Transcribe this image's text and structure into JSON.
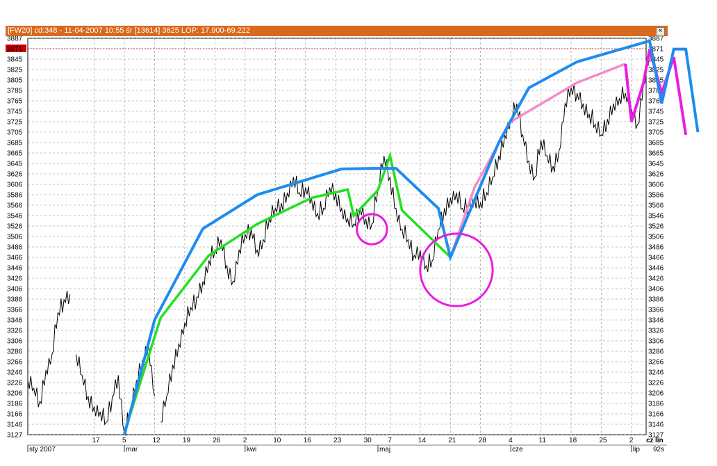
{
  "window": {
    "title": "[FW20] cd:348 - 11-04-2007 10:55 śr [13614]   3625  LOP: 17.900-69.222",
    "close_label": "×"
  },
  "status": {
    "mode_cz": "cz",
    "mode_lin": "lin",
    "interval": "92s",
    "last_price": "3871"
  },
  "colors": {
    "title_bg": "#d9691e",
    "price_line": "#000000",
    "blue_line": "#1e8cf0",
    "green_line": "#22e022",
    "pink_line": "#f48cc8",
    "magenta_line": "#e81ee0",
    "last_price_bg": "#cc0000"
  },
  "chart_data": {
    "type": "line",
    "title": "[FW20] cd:348 - 11-04-2007 10:55 śr [13614]   3625  LOP: 17.900-69.222",
    "ylim": [
      3127,
      3887
    ],
    "grid": true,
    "y_ticks_left": [
      "3887",
      "3871",
      "3845",
      "3825",
      "3805",
      "3785",
      "3765",
      "3745",
      "3725",
      "3705",
      "3685",
      "3665",
      "3645",
      "3626",
      "3606",
      "3586",
      "3566",
      "3546",
      "3526",
      "3506",
      "3486",
      "3466",
      "3446",
      "3426",
      "3406",
      "3386",
      "3366",
      "3346",
      "3326",
      "3306",
      "3286",
      "3266",
      "3246",
      "3226",
      "3206",
      "3186",
      "3166",
      "3146",
      "3127"
    ],
    "y_ticks_right": [
      "3887",
      "3871",
      "3845",
      "3825",
      "3805",
      "3785",
      "3765",
      "3745",
      "3725",
      "3705",
      "3685",
      "3665",
      "3645",
      "3626",
      "3606",
      "3586",
      "3566",
      "3546",
      "3526",
      "3506",
      "3486",
      "3466",
      "3446",
      "3426",
      "3406",
      "3386",
      "3366",
      "3346",
      "3326",
      "3306",
      "3286",
      "3266",
      "3246",
      "3226",
      "3206",
      "3186",
      "3166",
      "3146",
      "3127"
    ],
    "x_day_ticks": [
      {
        "label": "17",
        "x": 11
      },
      {
        "label": "5",
        "x": 16
      },
      {
        "label": "12",
        "x": 21
      },
      {
        "label": "19",
        "x": 26
      },
      {
        "label": "26",
        "x": 31
      },
      {
        "label": "2",
        "x": 36
      },
      {
        "label": "10",
        "x": 41
      },
      {
        "label": "16",
        "x": 46
      },
      {
        "label": "23",
        "x": 51
      },
      {
        "label": "30",
        "x": 56
      },
      {
        "label": "7",
        "x": 60
      },
      {
        "label": "14",
        "x": 65
      },
      {
        "label": "21",
        "x": 70
      },
      {
        "label": "28",
        "x": 75
      },
      {
        "label": "4",
        "x": 80
      },
      {
        "label": "11",
        "x": 85
      },
      {
        "label": "18",
        "x": 90
      },
      {
        "label": "25",
        "x": 95
      },
      {
        "label": "2",
        "x": 100
      }
    ],
    "x_month_ticks": [
      {
        "label": "sty 2007",
        "x": 0
      },
      {
        "label": "mar",
        "x": 16
      },
      {
        "label": "kwi",
        "x": 36
      },
      {
        "label": "maj",
        "x": 58
      },
      {
        "label": "cze",
        "x": 80
      },
      {
        "label": "lip",
        "x": 100
      }
    ],
    "series": [
      {
        "key": "price",
        "x": [
          0,
          1,
          2,
          3,
          4,
          5,
          6,
          7,
          8,
          9,
          10,
          11,
          12,
          13,
          14,
          15,
          16,
          17,
          18,
          19,
          20,
          21,
          22,
          23,
          24,
          25,
          26,
          27,
          28,
          29,
          30,
          31,
          32,
          33,
          34,
          35,
          36,
          37,
          38,
          39,
          40,
          41,
          42,
          43,
          44,
          45,
          46,
          47,
          48,
          49,
          50,
          51,
          52,
          53,
          54,
          55,
          56,
          57,
          58,
          59,
          60,
          61,
          62,
          63,
          64,
          65,
          66,
          67,
          68,
          69,
          70,
          71,
          72,
          73,
          74,
          75,
          76,
          77,
          78,
          79,
          80,
          81,
          82,
          83,
          84,
          85,
          86,
          87,
          88,
          89,
          90,
          91,
          92,
          93,
          94,
          95,
          96,
          97,
          98,
          99,
          100,
          101,
          102,
          103
        ],
        "y": [
          3230,
          3215,
          3190,
          3250,
          3280,
          3360,
          3385,
          3395,
          3280,
          3240,
          3200,
          3180,
          3170,
          3150,
          3200,
          3240,
          3130,
          3170,
          3230,
          3270,
          3300,
          3200,
          3150,
          3200,
          3260,
          3300,
          3340,
          3370,
          3390,
          3420,
          3460,
          3480,
          3500,
          3450,
          3420,
          3480,
          3510,
          3520,
          3480,
          3500,
          3540,
          3560,
          3570,
          3590,
          3620,
          3590,
          3600,
          3580,
          3550,
          3560,
          3600,
          3590,
          3560,
          3540,
          3530,
          3560,
          3540,
          3530,
          3600,
          3660,
          3620,
          3560,
          3520,
          3500,
          3470,
          3480,
          3450,
          3460,
          3520,
          3560,
          3580,
          3590,
          3560,
          3570,
          3580,
          3570,
          3590,
          3620,
          3660,
          3700,
          3730,
          3760,
          3700,
          3650,
          3620,
          3690,
          3660,
          3640,
          3670,
          3760,
          3790,
          3780,
          3760,
          3740,
          3720,
          3700,
          3730,
          3760,
          3770,
          3780,
          3750,
          3720,
          3800,
          3860
        ],
        "gaps_after": [
          7,
          21
        ]
      },
      {
        "key": "green",
        "x": [
          16,
          22,
          30,
          38,
          47,
          53,
          54,
          58,
          60,
          62,
          67,
          70
        ],
        "y": [
          3130,
          3350,
          3470,
          3530,
          3580,
          3596,
          3546,
          3595,
          3660,
          3556,
          3500,
          3466
        ]
      },
      {
        "key": "blue",
        "x": [
          16,
          21,
          29,
          38,
          52,
          57,
          61,
          68,
          70,
          78,
          83,
          91,
          103,
          105,
          107,
          109,
          111
        ],
        "y": [
          3127,
          3346,
          3521,
          3586,
          3635,
          3636,
          3636,
          3560,
          3466,
          3685,
          3790,
          3840,
          3883,
          3760,
          3870,
          3870,
          3705
        ]
      },
      {
        "key": "pink",
        "x": [
          70,
          74,
          80,
          91,
          99
        ],
        "y": [
          3466,
          3600,
          3725,
          3800,
          3836
        ]
      },
      {
        "key": "magenta",
        "x": [
          99,
          100,
          102,
          103,
          105,
          107,
          109
        ],
        "y": [
          3836,
          3725,
          3800,
          3870,
          3780,
          3850,
          3700
        ]
      }
    ],
    "annotations": [
      {
        "type": "circle",
        "x": 57,
        "y": 3520,
        "r_units": 2.5
      },
      {
        "type": "circle",
        "x": 71,
        "y": 3442,
        "r_units": 6
      }
    ]
  }
}
